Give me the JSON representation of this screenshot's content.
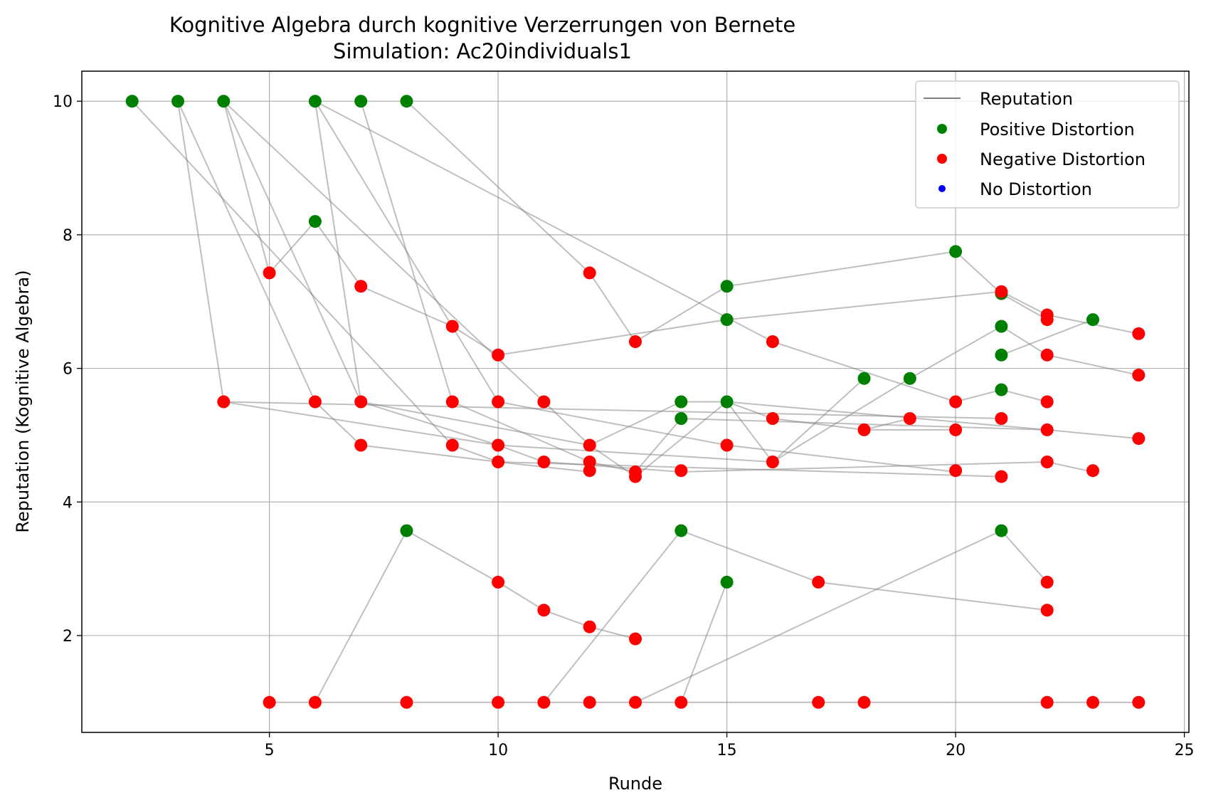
{
  "chart_data": {
    "type": "scatter",
    "title": "Kognitive Algebra durch kognitive Verzerrungen von Bernete",
    "subtitle": "Simulation: Ac20individuals1",
    "xlabel": "Runde",
    "ylabel": "Reputation (Kognitive Algebra)",
    "xlim": [
      0.9,
      25.1
    ],
    "ylim": [
      0.55,
      10.45
    ],
    "xticks": [
      5,
      10,
      15,
      20,
      25
    ],
    "yticks": [
      2,
      4,
      6,
      8,
      10
    ],
    "grid": true,
    "legend_position": "top-right",
    "legend": [
      {
        "label": "Reputation",
        "kind": "line",
        "color": "#808080"
      },
      {
        "label": "Positive Distortion",
        "kind": "marker",
        "color": "#008000"
      },
      {
        "label": "Negative Distortion",
        "kind": "marker",
        "color": "#ff0000"
      },
      {
        "label": "No Distortion",
        "kind": "marker",
        "color": "#0000ff"
      }
    ],
    "colors": {
      "positive": "#008000",
      "negative": "#ff0000",
      "none": "#0000ff",
      "line": "#808080"
    },
    "series": [
      {
        "points": [
          [
            2,
            10
          ],
          [
            9,
            4.85
          ],
          [
            10,
            4.6
          ],
          [
            12,
            4.45
          ]
        ]
      },
      {
        "points": [
          [
            3,
            10
          ],
          [
            4,
            5.5
          ],
          [
            10,
            4.85
          ],
          [
            16,
            4.6
          ],
          [
            18,
            5.85
          ]
        ]
      },
      {
        "points": [
          [
            3,
            10
          ],
          [
            6,
            5.5
          ],
          [
            7,
            4.85
          ],
          [
            10,
            4.6
          ],
          [
            21,
            4.38
          ]
        ]
      },
      {
        "points": [
          [
            4,
            10
          ],
          [
            5,
            7.43
          ],
          [
            6,
            8.2
          ],
          [
            7,
            7.23
          ],
          [
            9,
            6.63
          ],
          [
            10,
            6.2
          ],
          [
            15,
            6.73
          ],
          [
            21,
            7.15
          ],
          [
            22,
            6.8
          ],
          [
            24,
            6.52
          ]
        ]
      },
      {
        "points": [
          [
            4,
            10
          ],
          [
            7,
            5.5
          ],
          [
            10,
            4.85
          ],
          [
            11,
            4.6
          ],
          [
            14,
            4.45
          ],
          [
            22,
            4.6
          ],
          [
            23,
            4.45
          ]
        ]
      },
      {
        "points": [
          [
            4,
            10
          ],
          [
            11,
            5.5
          ],
          [
            12,
            4.85
          ],
          [
            13,
            4.38
          ],
          [
            15,
            5.5
          ],
          [
            16,
            5.25
          ],
          [
            18,
            5.08
          ],
          [
            20,
            5.08
          ]
        ]
      },
      {
        "points": [
          [
            6,
            10
          ],
          [
            7,
            5.5
          ],
          [
            12,
            4.85
          ],
          [
            14,
            5.5
          ],
          [
            15,
            5.5
          ],
          [
            16,
            4.6
          ],
          [
            19,
            5.85
          ],
          [
            21,
            6.63
          ],
          [
            22,
            6.2
          ],
          [
            24,
            5.9
          ]
        ]
      },
      {
        "points": [
          [
            6,
            10
          ],
          [
            10,
            5.5
          ],
          [
            15,
            4.85
          ],
          [
            20,
            4.45
          ]
        ]
      },
      {
        "points": [
          [
            7,
            10
          ],
          [
            9,
            5.5
          ],
          [
            12,
            4.6
          ],
          [
            13,
            4.45
          ],
          [
            14,
            5.25
          ],
          [
            22,
            5.08
          ],
          [
            24,
            4.95
          ]
        ]
      },
      {
        "points": [
          [
            8,
            10
          ],
          [
            12,
            7.43
          ],
          [
            13,
            6.4
          ],
          [
            15,
            7.23
          ],
          [
            20,
            7.75
          ],
          [
            21,
            7.12
          ],
          [
            22,
            6.73
          ]
        ]
      },
      {
        "points": [
          [
            6,
            10
          ],
          [
            16,
            6.4
          ],
          [
            20,
            5.5
          ],
          [
            21,
            5.68
          ],
          [
            22,
            5.5
          ]
        ]
      },
      {
        "points": [
          [
            4,
            5.5
          ],
          [
            21,
            5.25
          ]
        ]
      },
      {
        "points": [
          [
            15,
            5.5
          ],
          [
            22,
            5.08
          ]
        ]
      },
      {
        "points": [
          [
            18,
            5.08
          ],
          [
            19,
            5.25
          ]
        ]
      },
      {
        "points": [
          [
            21,
            6.2
          ],
          [
            23,
            6.73
          ]
        ]
      },
      {
        "points": [
          [
            6,
            1
          ],
          [
            8,
            3.57
          ],
          [
            10,
            2.8
          ],
          [
            11,
            2.38
          ],
          [
            12,
            2.13
          ],
          [
            13,
            1.95
          ]
        ]
      },
      {
        "points": [
          [
            11,
            1
          ],
          [
            14,
            3.57
          ],
          [
            17,
            2.8
          ],
          [
            22,
            2.38
          ]
        ]
      },
      {
        "points": [
          [
            13,
            1
          ],
          [
            21,
            3.57
          ],
          [
            22,
            2.8
          ]
        ]
      },
      {
        "points": [
          [
            14,
            1
          ],
          [
            15,
            2.8
          ]
        ]
      },
      {
        "points": [
          [
            5,
            1
          ],
          [
            6,
            1
          ],
          [
            8,
            1
          ],
          [
            10,
            1
          ],
          [
            11,
            1
          ],
          [
            12,
            1
          ],
          [
            13,
            1
          ],
          [
            14,
            1
          ],
          [
            17,
            1
          ],
          [
            18,
            1
          ],
          [
            22,
            1
          ],
          [
            23,
            1
          ],
          [
            24,
            1
          ]
        ]
      }
    ],
    "markers": {
      "positive": [
        [
          2,
          10
        ],
        [
          3,
          10
        ],
        [
          4,
          10
        ],
        [
          6,
          10
        ],
        [
          7,
          10
        ],
        [
          8,
          10
        ],
        [
          6,
          8.2
        ],
        [
          15,
          7.23
        ],
        [
          15,
          6.73
        ],
        [
          20,
          7.75
        ],
        [
          21,
          7.12
        ],
        [
          21,
          6.63
        ],
        [
          21,
          6.2
        ],
        [
          21,
          5.68
        ],
        [
          23,
          6.73
        ],
        [
          18,
          5.85
        ],
        [
          19,
          5.85
        ],
        [
          14,
          5.5
        ],
        [
          14,
          5.25
        ],
        [
          15,
          5.5
        ],
        [
          8,
          3.57
        ],
        [
          14,
          3.57
        ],
        [
          21,
          3.57
        ],
        [
          15,
          2.8
        ]
      ],
      "negative": [
        [
          5,
          7.43
        ],
        [
          7,
          7.23
        ],
        [
          12,
          7.43
        ],
        [
          9,
          6.63
        ],
        [
          10,
          6.2
        ],
        [
          13,
          6.4
        ],
        [
          16,
          6.4
        ],
        [
          21,
          7.15
        ],
        [
          22,
          6.8
        ],
        [
          22,
          6.73
        ],
        [
          24,
          6.52
        ],
        [
          22,
          6.2
        ],
        [
          24,
          5.9
        ],
        [
          4,
          5.5
        ],
        [
          6,
          5.5
        ],
        [
          7,
          5.5
        ],
        [
          9,
          5.5
        ],
        [
          10,
          5.5
        ],
        [
          11,
          5.5
        ],
        [
          20,
          5.5
        ],
        [
          22,
          5.5
        ],
        [
          7,
          4.85
        ],
        [
          9,
          4.85
        ],
        [
          10,
          4.85
        ],
        [
          12,
          4.85
        ],
        [
          15,
          4.85
        ],
        [
          10,
          4.6
        ],
        [
          11,
          4.6
        ],
        [
          12,
          4.6
        ],
        [
          12,
          4.47
        ],
        [
          13,
          4.45
        ],
        [
          13,
          4.38
        ],
        [
          14,
          4.47
        ],
        [
          16,
          5.25
        ],
        [
          16,
          4.6
        ],
        [
          18,
          5.08
        ],
        [
          19,
          5.25
        ],
        [
          20,
          5.08
        ],
        [
          21,
          5.25
        ],
        [
          22,
          5.08
        ],
        [
          24,
          4.95
        ],
        [
          20,
          4.47
        ],
        [
          21,
          4.38
        ],
        [
          22,
          4.6
        ],
        [
          23,
          4.47
        ],
        [
          10,
          2.8
        ],
        [
          11,
          2.38
        ],
        [
          12,
          2.13
        ],
        [
          13,
          1.95
        ],
        [
          17,
          2.8
        ],
        [
          22,
          2.8
        ],
        [
          22,
          2.38
        ],
        [
          5,
          1
        ],
        [
          6,
          1
        ],
        [
          8,
          1
        ],
        [
          10,
          1
        ],
        [
          11,
          1
        ],
        [
          12,
          1
        ],
        [
          13,
          1
        ],
        [
          14,
          1
        ],
        [
          17,
          1
        ],
        [
          18,
          1
        ],
        [
          22,
          1
        ],
        [
          23,
          1
        ],
        [
          24,
          1
        ]
      ],
      "none": []
    }
  }
}
